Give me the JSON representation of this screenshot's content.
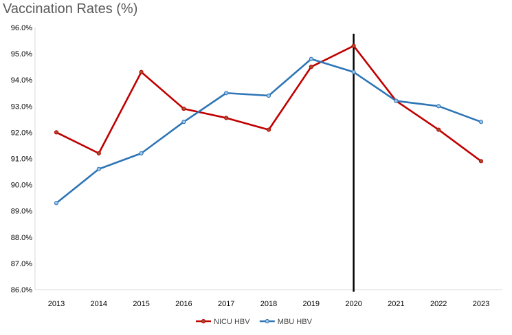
{
  "chart_data": {
    "type": "line",
    "title": "Vaccination Rates (%)",
    "xlabel": "",
    "ylabel": "",
    "categories": [
      "2013",
      "2014",
      "2015",
      "2016",
      "2017",
      "2018",
      "2019",
      "2020",
      "2021",
      "2022",
      "2023"
    ],
    "ylim": [
      86.0,
      96.0
    ],
    "ytick_step": 1.0,
    "ytick_labels": [
      "86.0%",
      "87.0%",
      "88.0%",
      "89.0%",
      "90.0%",
      "91.0%",
      "92.0%",
      "93.0%",
      "94.0%",
      "95.0%",
      "96.0%"
    ],
    "grid": false,
    "legend": "bottom",
    "marker_line": {
      "category": "2020",
      "color": "#000000"
    },
    "series": [
      {
        "name": "NICU HBV",
        "color": "#C00000",
        "marker_color": "#A0522D",
        "values": [
          92.0,
          91.2,
          94.3,
          92.9,
          92.55,
          92.1,
          94.5,
          95.3,
          93.2,
          92.1,
          90.9
        ]
      },
      {
        "name": "MBU HBV",
        "color": "#2E75B6",
        "marker_color": "#9DC3E6",
        "values": [
          89.3,
          90.6,
          91.2,
          92.4,
          93.5,
          93.4,
          94.8,
          94.3,
          93.2,
          93.0,
          92.4
        ]
      }
    ]
  }
}
